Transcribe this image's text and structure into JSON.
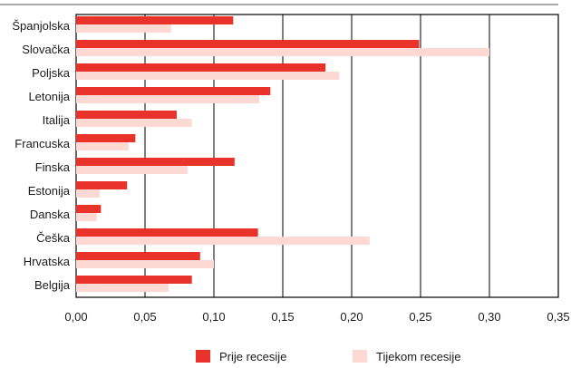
{
  "chart_data": {
    "type": "bar",
    "orientation": "horizontal",
    "categories": [
      "Španjolska",
      "Slovačka",
      "Poljska",
      "Letonija",
      "Italija",
      "Francuska",
      "Finska",
      "Estonija",
      "Danska",
      "Češka",
      "Hrvatska",
      "Belgija"
    ],
    "series": [
      {
        "name": "Prije recesije",
        "color": "#e8322a",
        "values": [
          0.114,
          0.249,
          0.181,
          0.141,
          0.073,
          0.043,
          0.115,
          0.037,
          0.018,
          0.132,
          0.09,
          0.084
        ]
      },
      {
        "name": "Tijekom recesije",
        "color": "#fcd9d2",
        "values": [
          0.069,
          0.3,
          0.191,
          0.133,
          0.084,
          0.038,
          0.081,
          0.017,
          0.015,
          0.213,
          0.1,
          0.067
        ]
      }
    ],
    "x_ticks": [
      "0,00",
      "0,05",
      "0,10",
      "0,15",
      "0,20",
      "0,25",
      "0,30",
      "0,35"
    ],
    "xlim": [
      0,
      0.35
    ],
    "grid": true,
    "legend_position": "bottom"
  }
}
